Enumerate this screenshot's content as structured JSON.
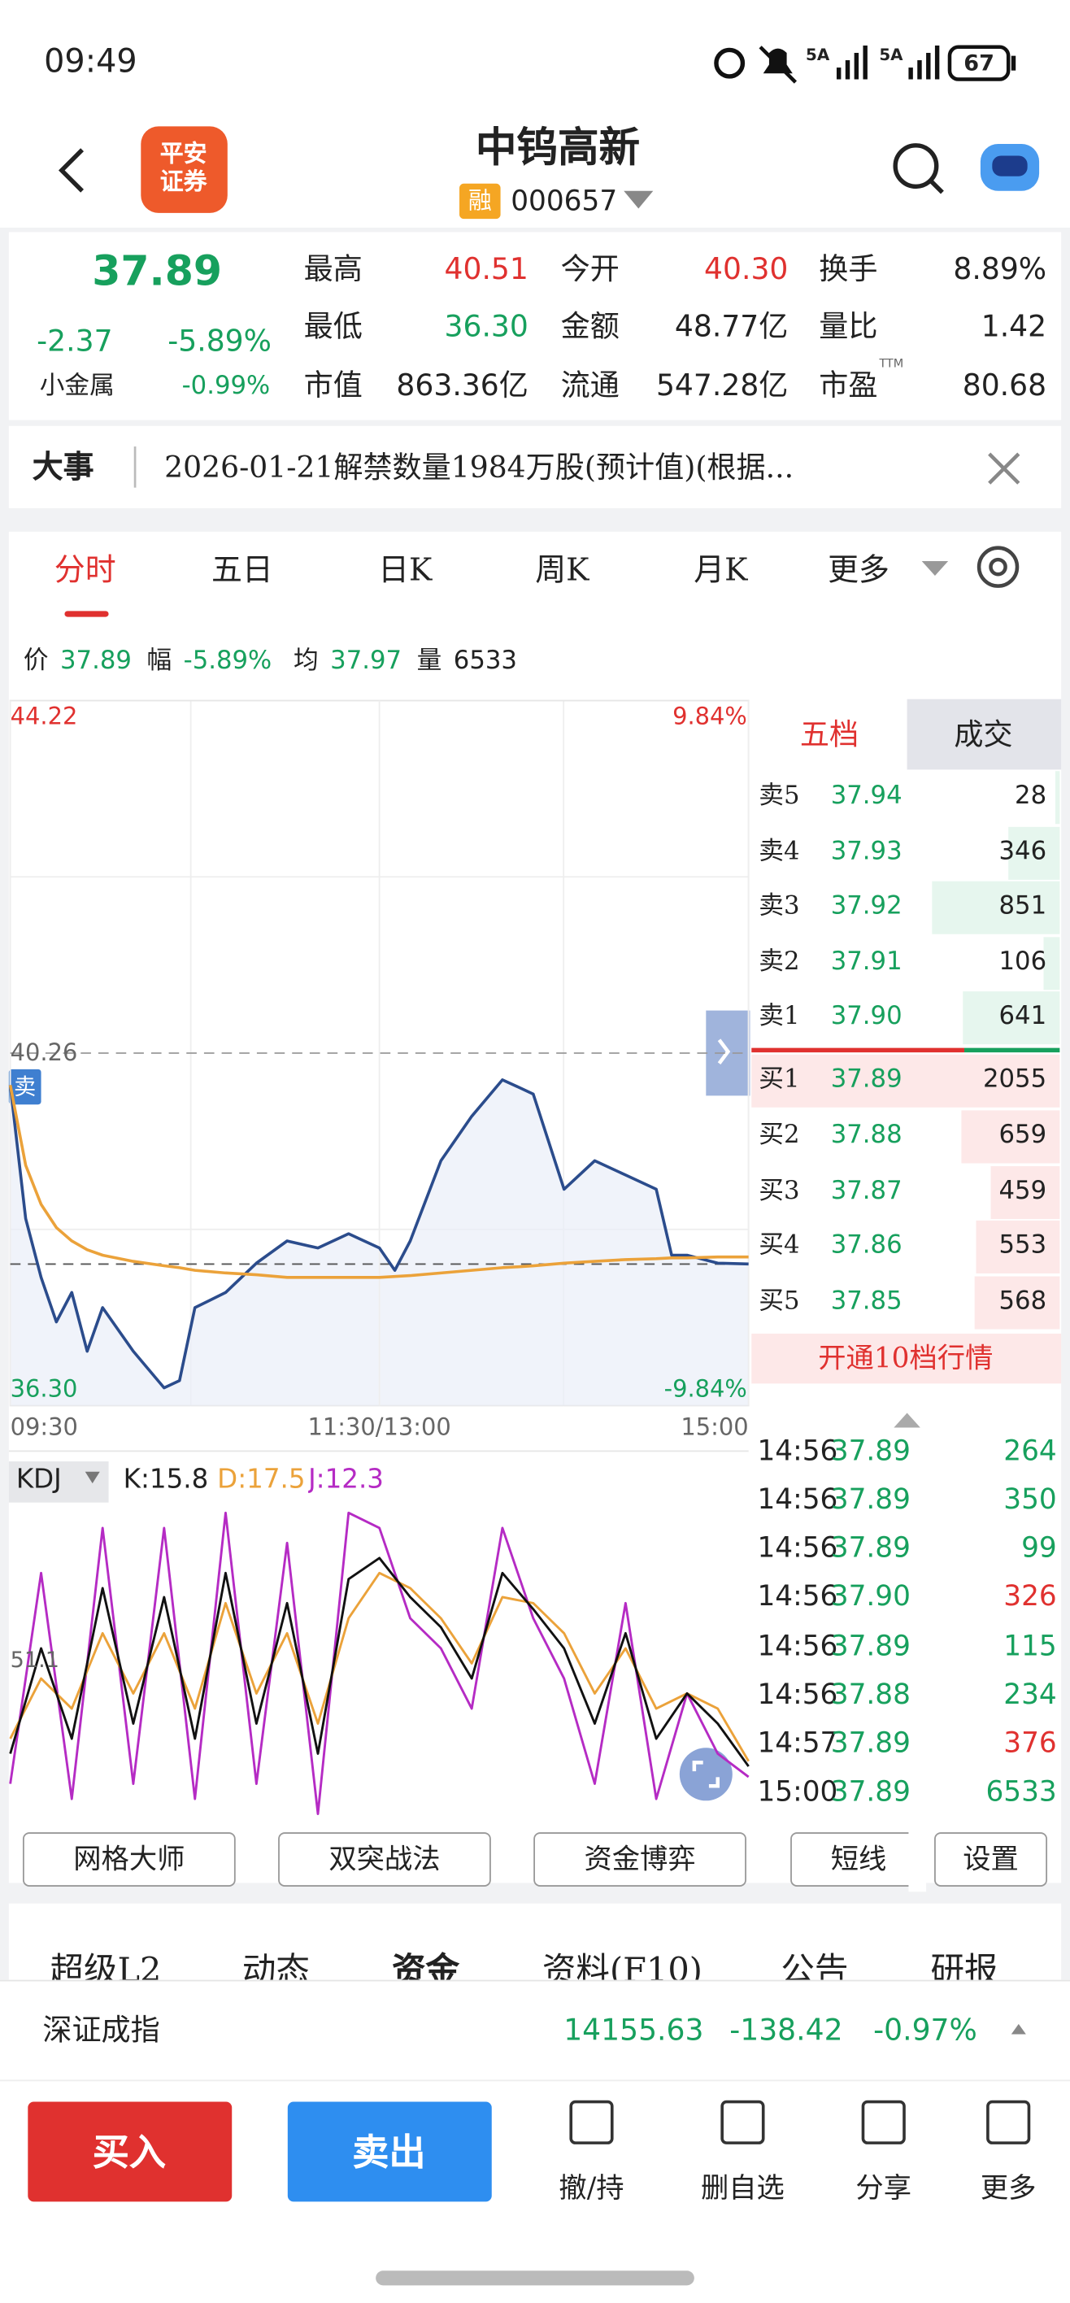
{
  "status_bar": {
    "time": "09:49",
    "net1": "5A",
    "net2": "5A",
    "battery": "67"
  },
  "header": {
    "logo_line1": "平安",
    "logo_line2": "证券",
    "name": "中钨高新",
    "margin_tag": "融",
    "code": "000657"
  },
  "quote": {
    "price": "37.89",
    "change": "-2.37",
    "change_pct": "-5.89%",
    "sector": "小金属",
    "sector_pct": "-0.99%",
    "pe_note": "TTM",
    "fields": [
      {
        "label": "最高",
        "value": "40.51",
        "color": "#e0312f"
      },
      {
        "label": "今开",
        "value": "40.30",
        "color": "#e0312f"
      },
      {
        "label": "换手",
        "value": "8.89%",
        "color": "#222222"
      },
      {
        "label": "最低",
        "value": "36.30",
        "color": "#17a05d"
      },
      {
        "label": "金额",
        "value": "48.77亿",
        "color": "#222222"
      },
      {
        "label": "量比",
        "value": "1.42",
        "color": "#222222"
      },
      {
        "label": "市值",
        "value": "863.36亿",
        "color": "#222222"
      },
      {
        "label": "流通",
        "value": "547.28亿",
        "color": "#222222"
      },
      {
        "label": "市盈",
        "value": "80.68",
        "color": "#222222"
      }
    ]
  },
  "news": {
    "label": "大事",
    "text": "2026-01-21解禁数量1984万股(预计值)(根据..."
  },
  "tabs": [
    "分时",
    "五日",
    "日K",
    "周K",
    "月K",
    "更多"
  ],
  "summary": {
    "price_label": "价",
    "price": "37.89",
    "range_label": "幅",
    "range": "-5.89%",
    "avg_label": "均",
    "avg": "37.97",
    "vol_label": "量",
    "vol": "6533"
  },
  "sell_tag": "卖",
  "kdj": {
    "name": "KDJ",
    "k": "K:15.8",
    "d": "D:17.5",
    "j": "J:12.3"
  },
  "order_book": {
    "tabs": [
      "五档",
      "成交"
    ],
    "asks": [
      {
        "label": "卖5",
        "price": "37.94",
        "volume": 28
      },
      {
        "label": "卖4",
        "price": "37.93",
        "volume": 346
      },
      {
        "label": "卖3",
        "price": "37.92",
        "volume": 851
      },
      {
        "label": "卖2",
        "price": "37.91",
        "volume": 106
      },
      {
        "label": "卖1",
        "price": "37.90",
        "volume": 641
      }
    ],
    "bids": [
      {
        "label": "买1",
        "price": "37.89",
        "volume": 2055
      },
      {
        "label": "买2",
        "price": "37.88",
        "volume": 659
      },
      {
        "label": "买3",
        "price": "37.87",
        "volume": 459
      },
      {
        "label": "买4",
        "price": "37.86",
        "volume": 553
      },
      {
        "label": "买5",
        "price": "37.85",
        "volume": 568
      }
    ],
    "upgrade": "开通10档行情"
  },
  "trades": [
    {
      "time": "14:56",
      "price": "37.89",
      "volume": 264,
      "color": "#17a05d"
    },
    {
      "time": "14:56",
      "price": "37.89",
      "volume": 350,
      "color": "#17a05d"
    },
    {
      "time": "14:56",
      "price": "37.89",
      "volume": 99,
      "color": "#17a05d"
    },
    {
      "time": "14:56",
      "price": "37.90",
      "volume": 326,
      "color": "#e0312f"
    },
    {
      "time": "14:56",
      "price": "37.89",
      "volume": 115,
      "color": "#17a05d"
    },
    {
      "time": "14:56",
      "price": "37.88",
      "volume": 234,
      "color": "#17a05d"
    },
    {
      "time": "14:57",
      "price": "37.89",
      "volume": 376,
      "color": "#e0312f"
    },
    {
      "time": "15:00",
      "price": "37.89",
      "volume": 6533,
      "color": "#17a05d"
    }
  ],
  "tools": [
    "网格大师",
    "双突战法",
    "资金博弈",
    "短线",
    "设置"
  ],
  "sections": [
    "超级L2",
    "动态",
    "资金",
    "资料(F10)",
    "公告",
    "研报"
  ],
  "index": {
    "name": "深证成指",
    "value": "14155.63",
    "change": "-138.42",
    "change_pct": "-0.97%"
  },
  "actions": {
    "buy": "买入",
    "sell": "卖出",
    "items": [
      "撤/持",
      "删自选",
      "分享",
      "更多"
    ]
  },
  "chart_data": [
    {
      "type": "line",
      "x": [
        0,
        5,
        10,
        15,
        20,
        25,
        30,
        40,
        50,
        55,
        60,
        70,
        80,
        90,
        100,
        110,
        120,
        125,
        130,
        140,
        150,
        160,
        165,
        170,
        180,
        190,
        200,
        210,
        215,
        220,
        230,
        240
      ],
      "xlim": [
        0,
        240
      ],
      "xticks": [
        {
          "value": 0,
          "label": "09:30"
        },
        {
          "value": 120,
          "label": "11:30/13:00"
        },
        {
          "value": 240,
          "label": "15:00"
        }
      ],
      "ylim": [
        36.3,
        44.22
      ],
      "yticks": [
        {
          "value": 36.3,
          "label": "36.30"
        },
        40.26,
        44.22
      ],
      "y2lim": [
        -9.84,
        9.84
      ],
      "y2ticks": [
        {
          "value": -9.84,
          "label": "-9.84%"
        },
        {
          "value": 9.84,
          "label": "9.84%"
        }
      ],
      "series": [
        {
          "color": "#2b4c8c",
          "area": true,
          "values": [
            39.9,
            38.4,
            37.74,
            37.24,
            37.57,
            36.91,
            37.4,
            36.91,
            36.5,
            36.58,
            37.4,
            37.57,
            37.9,
            38.15,
            38.07,
            38.23,
            38.07,
            37.82,
            38.15,
            39.05,
            39.55,
            39.96,
            39.88,
            39.8,
            38.73,
            39.05,
            38.89,
            38.73,
            37.99,
            37.99,
            37.9,
            37.89
          ]
        },
        {
          "color": "#eba23a",
          "values": [
            39.9,
            39.0,
            38.56,
            38.3,
            38.15,
            38.05,
            37.99,
            37.92,
            37.87,
            37.85,
            37.82,
            37.79,
            37.77,
            37.74,
            37.74,
            37.74,
            37.74,
            37.75,
            37.76,
            37.79,
            37.82,
            37.85,
            37.86,
            37.87,
            37.9,
            37.92,
            37.94,
            37.95,
            37.96,
            37.96,
            37.97,
            37.97
          ]
        }
      ]
    },
    {
      "type": "line",
      "x": [
        0,
        10,
        20,
        30,
        40,
        50,
        60,
        70,
        80,
        90,
        100,
        110,
        120,
        130,
        140,
        150,
        160,
        170,
        180,
        190,
        200,
        210,
        220,
        230,
        240
      ],
      "xlim": [
        0,
        240
      ],
      "ylim": [
        0,
        100
      ],
      "yticks": [
        51.1
      ],
      "series": [
        {
          "color": "#111111",
          "values": [
            20,
            55,
            25,
            75,
            30,
            72,
            25,
            80,
            30,
            70,
            20,
            78,
            85,
            72,
            62,
            45,
            80,
            68,
            55,
            30,
            60,
            25,
            40,
            30,
            15.8
          ]
        },
        {
          "color": "#eba23a",
          "values": [
            25,
            45,
            35,
            60,
            40,
            60,
            35,
            70,
            40,
            60,
            30,
            65,
            80,
            75,
            65,
            50,
            72,
            70,
            60,
            40,
            55,
            35,
            40,
            35,
            17.5
          ]
        },
        {
          "color": "#b52bc4",
          "values": [
            10,
            80,
            5,
            95,
            10,
            95,
            5,
            100,
            10,
            90,
            0,
            100,
            95,
            65,
            55,
            35,
            95,
            65,
            45,
            10,
            70,
            5,
            40,
            20,
            12.3
          ]
        }
      ]
    }
  ]
}
